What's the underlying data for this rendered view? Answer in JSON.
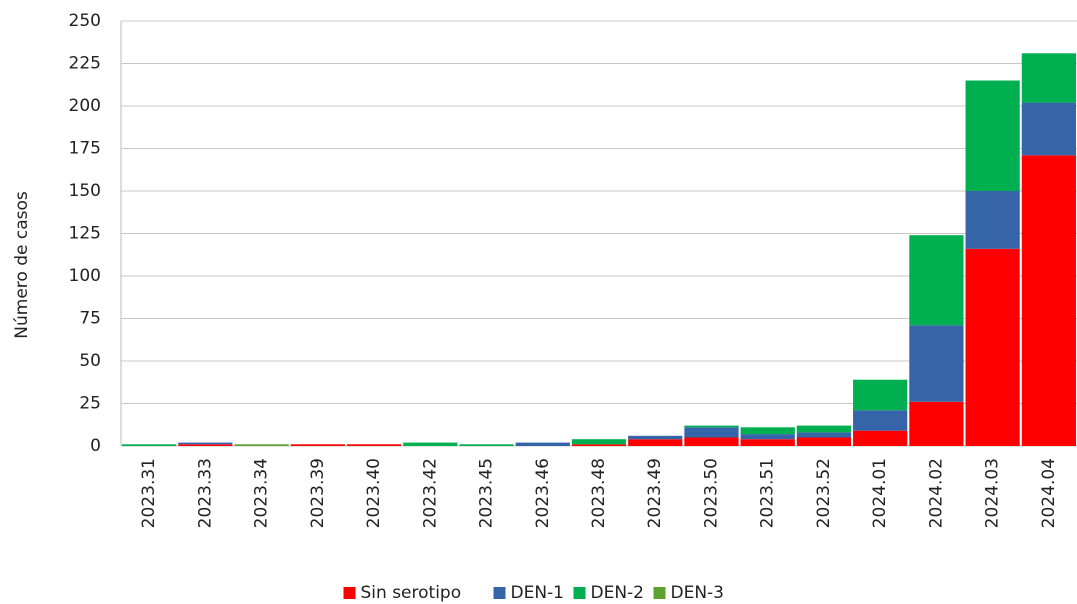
{
  "chart_data": {
    "type": "stacked-bar",
    "y_label": "Número de casos",
    "categories": [
      "2023.31",
      "2023.33",
      "2023.34",
      "2023.39",
      "2023.40",
      "2023.42",
      "2023.45",
      "2023.46",
      "2023.48",
      "2023.49",
      "2023.50",
      "2023.51",
      "2023.52",
      "2024.01",
      "2024.02",
      "2024.03",
      "2024.04"
    ],
    "series": [
      {
        "name": "Sin serotipo",
        "color": "#ff0000",
        "values": [
          0,
          1,
          0,
          1,
          1,
          0,
          0,
          0,
          1,
          4,
          5,
          4,
          5,
          9,
          26,
          116,
          171
        ]
      },
      {
        "name": "DEN-1",
        "color": "#3565a8",
        "values": [
          0,
          1,
          0,
          0,
          0,
          0,
          0,
          2,
          0,
          2,
          6,
          3,
          3,
          12,
          45,
          34,
          31
        ]
      },
      {
        "name": "DEN-2",
        "color": "#00b050",
        "values": [
          1,
          0,
          0,
          0,
          0,
          2,
          1,
          0,
          3,
          0,
          1,
          4,
          4,
          18,
          53,
          65,
          29
        ]
      },
      {
        "name": "DEN-3",
        "color": "#5ea22e",
        "values": [
          0,
          0,
          1,
          0,
          0,
          0,
          0,
          0,
          0,
          0,
          0,
          0,
          0,
          0,
          0,
          0,
          0
        ]
      }
    ],
    "ylim": [
      0,
      250
    ],
    "yticks": [
      0,
      25,
      50,
      75,
      100,
      125,
      150,
      175,
      200,
      225,
      250
    ],
    "grid": true
  }
}
